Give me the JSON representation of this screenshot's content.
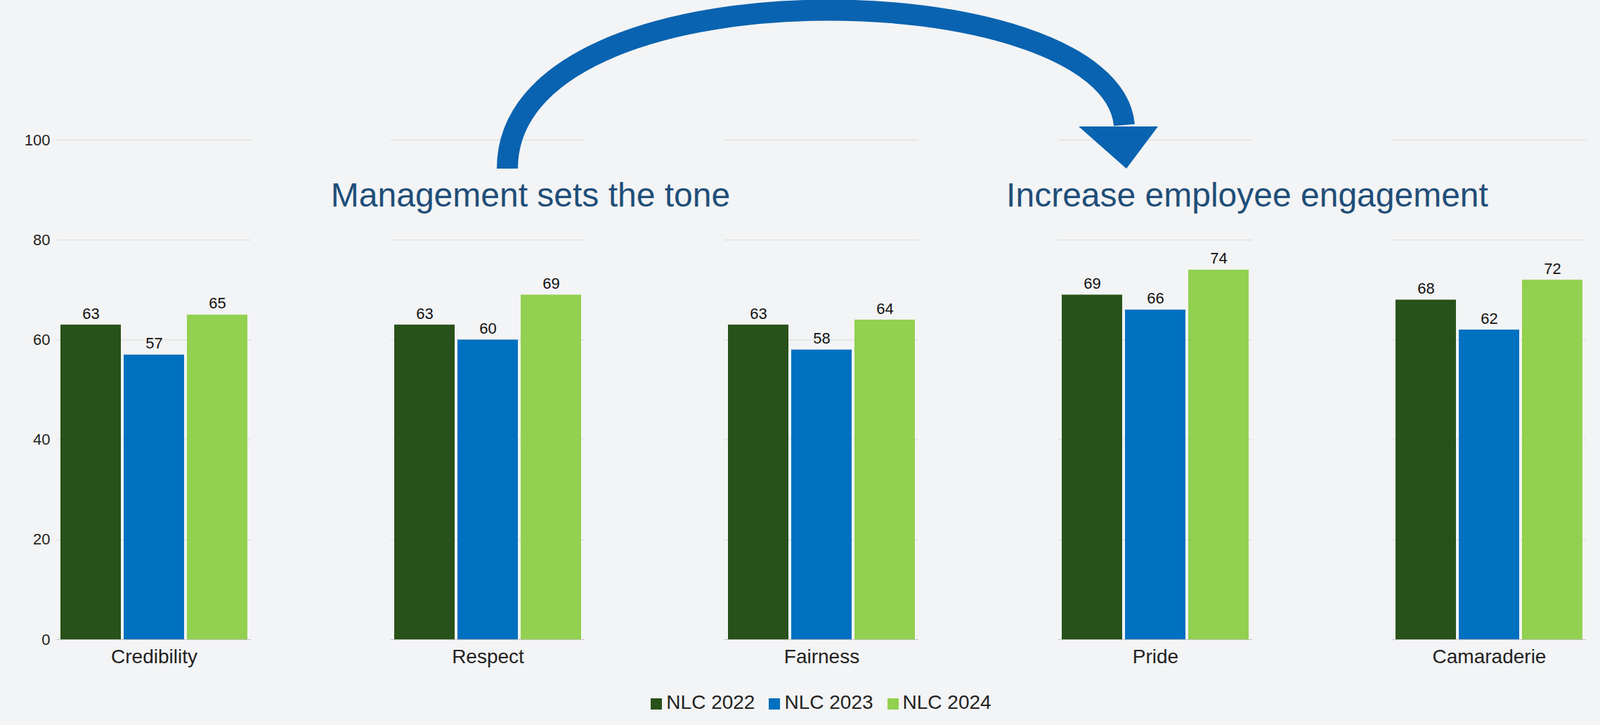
{
  "chart_data": {
    "type": "bar",
    "categories": [
      "Credibility",
      "Respect",
      "Fairness",
      "Pride",
      "Camaraderie"
    ],
    "series": [
      {
        "name": "NLC 2022",
        "color": "#285219",
        "values": [
          63,
          63,
          63,
          69,
          68
        ]
      },
      {
        "name": "NLC 2023",
        "color": "#0070c0",
        "values": [
          57,
          60,
          58,
          66,
          62
        ]
      },
      {
        "name": "NLC 2024",
        "color": "#92d050",
        "values": [
          65,
          69,
          64,
          74,
          72
        ]
      }
    ],
    "annotations": [
      "Management sets the tone",
      "Increase employee engagement"
    ],
    "ylim": [
      0,
      100
    ],
    "yticks": [
      0,
      20,
      40,
      60,
      80,
      100
    ],
    "grid": true,
    "data_labels": true,
    "legend": "bottom"
  }
}
